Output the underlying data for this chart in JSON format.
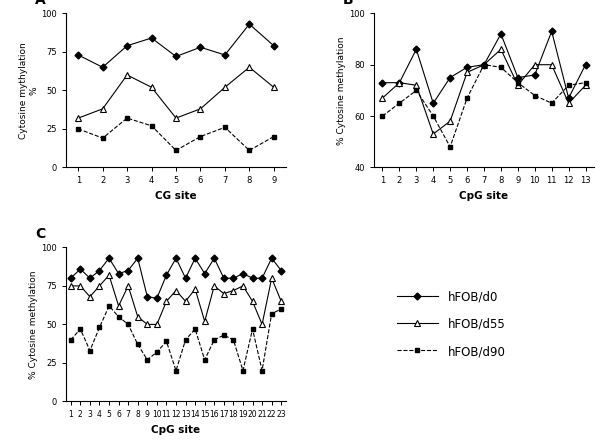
{
  "A": {
    "xlabel": "CG site",
    "ylabel": "% Cytosine mythylation",
    "ylabel_parts": [
      "Cytosine mythylation",
      "%"
    ],
    "xlim": [
      0.5,
      9.5
    ],
    "ylim": [
      0,
      100
    ],
    "yticks": [
      0,
      25,
      50,
      75,
      100
    ],
    "xticks": [
      1,
      2,
      3,
      4,
      5,
      6,
      7,
      8,
      9
    ],
    "d0": [
      73,
      65,
      79,
      84,
      72,
      78,
      73,
      93,
      79
    ],
    "d55": [
      32,
      38,
      60,
      52,
      32,
      38,
      52,
      65,
      52
    ],
    "d90": [
      25,
      19,
      32,
      27,
      11,
      20,
      26,
      11,
      20
    ]
  },
  "B": {
    "xlabel": "CpG site",
    "ylabel": "% Cytosine methylation",
    "xlim": [
      0.5,
      13.5
    ],
    "ylim": [
      40,
      100
    ],
    "yticks": [
      40,
      60,
      80,
      100
    ],
    "xticks": [
      1,
      2,
      3,
      4,
      5,
      6,
      7,
      8,
      9,
      10,
      11,
      12,
      13
    ],
    "d0": [
      73,
      73,
      86,
      65,
      75,
      79,
      80,
      92,
      75,
      76,
      93,
      67,
      80
    ],
    "d55": [
      67,
      73,
      72,
      53,
      58,
      77,
      80,
      86,
      72,
      80,
      80,
      65,
      72
    ],
    "d90": [
      60,
      65,
      70,
      60,
      48,
      67,
      80,
      79,
      73,
      68,
      65,
      72,
      73
    ]
  },
  "C": {
    "xlabel": "CpG site",
    "ylabel": "% Cytosine methylation",
    "xlim": [
      0.5,
      23.5
    ],
    "ylim": [
      0,
      100
    ],
    "yticks": [
      0,
      25,
      50,
      75,
      100
    ],
    "xticks": [
      1,
      2,
      3,
      4,
      5,
      6,
      7,
      8,
      9,
      10,
      11,
      12,
      13,
      14,
      15,
      16,
      17,
      18,
      19,
      20,
      21,
      22,
      23
    ],
    "d0": [
      80,
      86,
      80,
      85,
      93,
      83,
      85,
      93,
      68,
      67,
      82,
      93,
      80,
      93,
      83,
      93,
      80,
      80,
      83,
      80,
      80,
      93,
      85
    ],
    "d55": [
      75,
      75,
      68,
      75,
      82,
      62,
      75,
      55,
      50,
      50,
      65,
      72,
      65,
      73,
      52,
      75,
      70,
      72,
      75,
      65,
      50,
      80,
      65
    ],
    "d90": [
      40,
      47,
      33,
      48,
      62,
      55,
      50,
      37,
      27,
      32,
      39,
      20,
      40,
      47,
      27,
      40,
      43,
      40,
      20,
      47,
      20,
      57,
      60
    ]
  },
  "legend": {
    "d0_label": "hFOB/d0",
    "d55_label": "hFOB/d55",
    "d90_label": "hFOB/d90"
  }
}
